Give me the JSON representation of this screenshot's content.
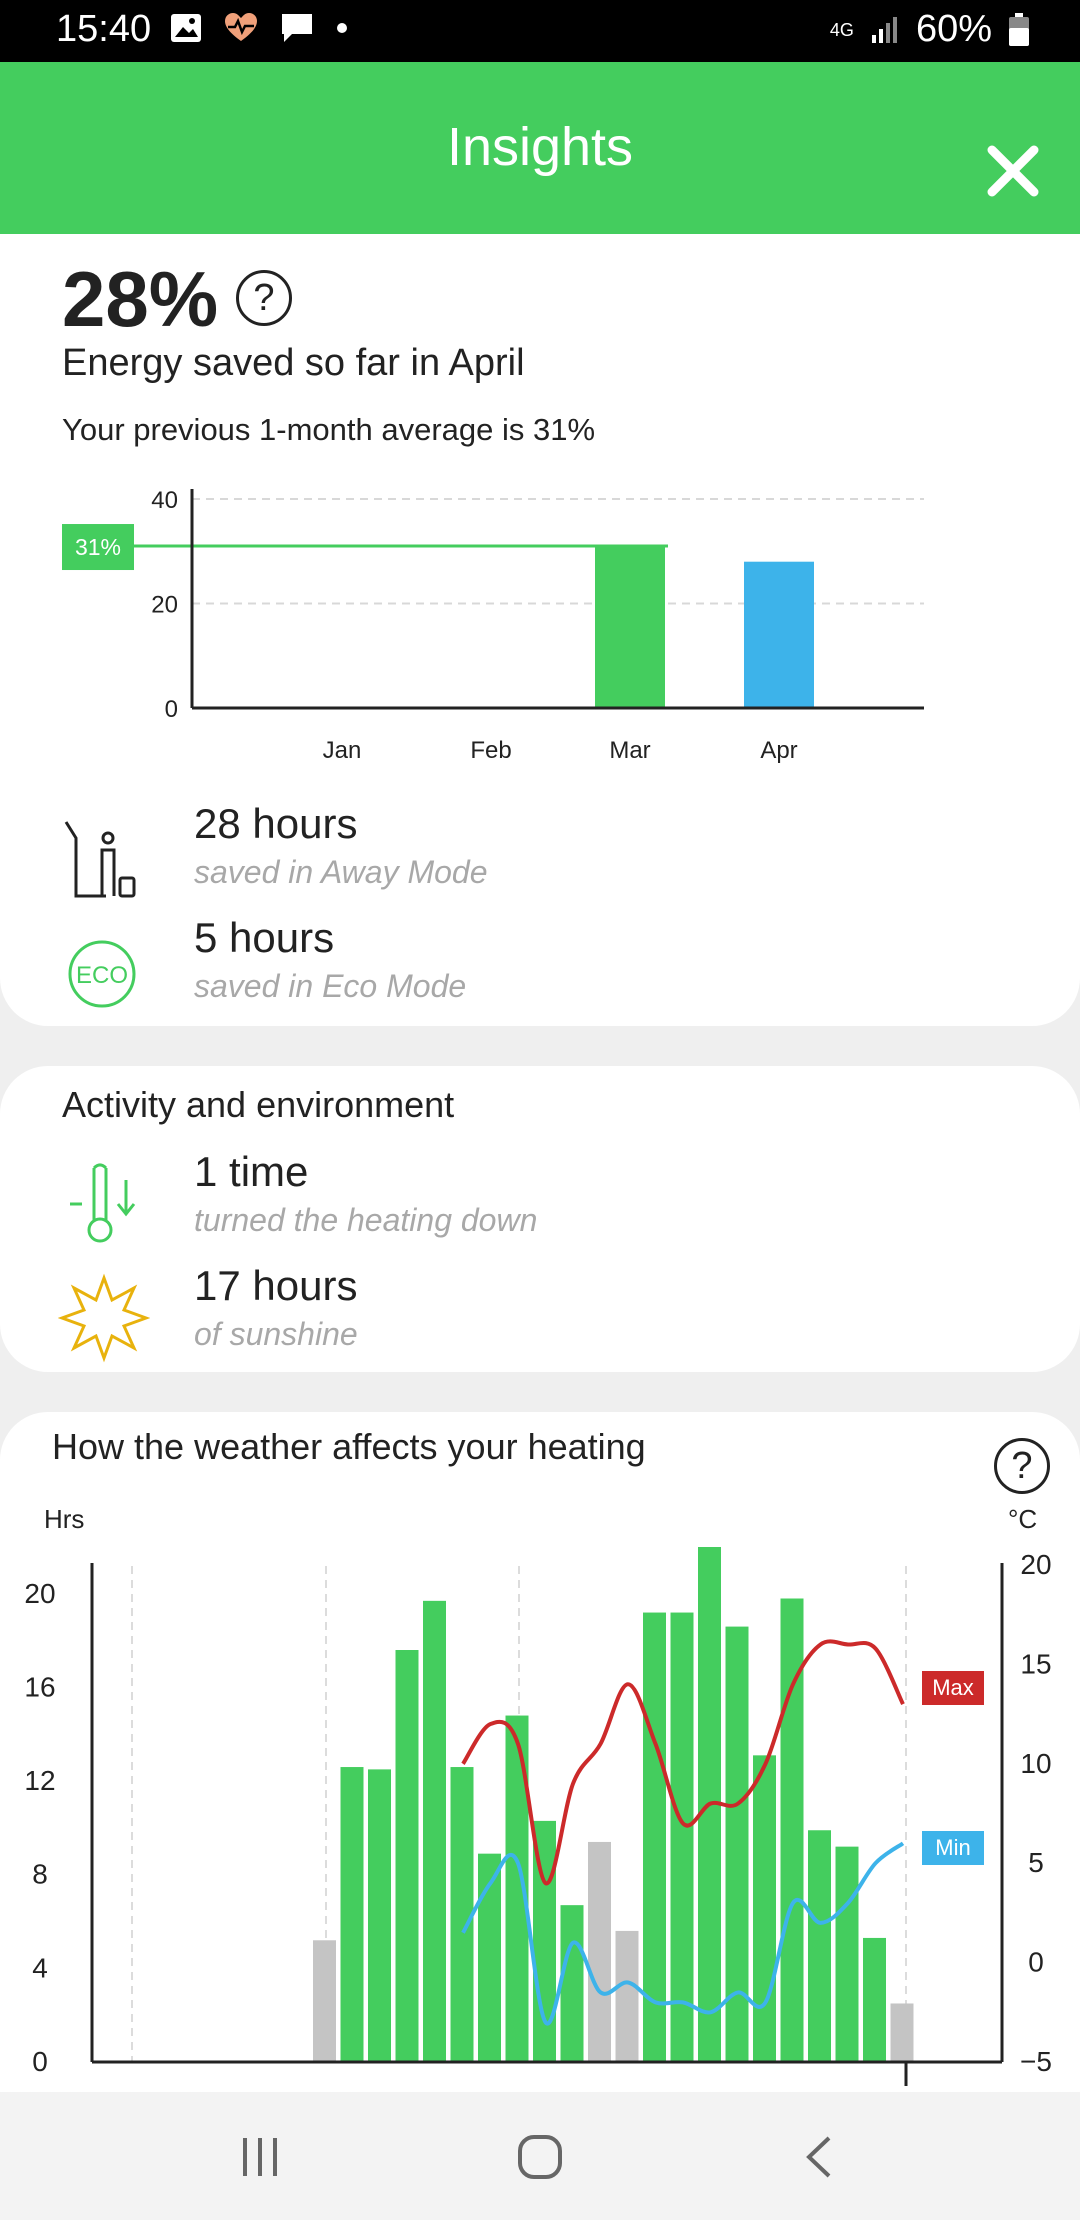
{
  "status_bar": {
    "time": "15:40",
    "network": "4G",
    "battery": "60%"
  },
  "app_bar": {
    "title": "Insights"
  },
  "energy": {
    "percent": "28%",
    "help": "?",
    "headline": "Energy saved so far in April",
    "subline": "Your previous 1-month average is 31%",
    "away": {
      "value": "28 hours",
      "label": "saved in Away Mode"
    },
    "eco": {
      "value": "5 hours",
      "label": "saved in Eco Mode",
      "icon_text": "ECO"
    }
  },
  "activity": {
    "title": "Activity and environment",
    "heating": {
      "value": "1 time",
      "label": "turned the heating down"
    },
    "sunshine": {
      "value": "17 hours",
      "label": "of sunshine"
    }
  },
  "weather": {
    "title": "How the weather affects your heating",
    "help": "?",
    "left_unit": "Hrs",
    "right_unit": "°C"
  },
  "colors": {
    "green": "#44cd5e",
    "blue": "#3db3ea",
    "red": "#cc2a2a",
    "gray": "#c4c4c4"
  },
  "chart_data": [
    {
      "type": "bar",
      "categories": [
        "Jan",
        "Feb",
        "Mar",
        "Apr"
      ],
      "values": [
        0,
        0,
        31,
        28
      ],
      "ylim": [
        0,
        40
      ],
      "yticks": [
        0,
        20,
        40
      ],
      "reference_line": {
        "value": 31,
        "label": "31%"
      },
      "grid": true
    },
    {
      "type": "bar",
      "left_axis": {
        "label": "Hrs",
        "ylim": [
          0,
          22
        ],
        "ticks": [
          0,
          4,
          8,
          12,
          16,
          20
        ]
      },
      "right_axis": {
        "label": "°C",
        "ylim": [
          -5,
          20
        ],
        "ticks": [
          -5,
          0,
          5,
          10,
          15,
          20
        ]
      },
      "x": [
        1,
        2,
        3,
        4,
        5,
        6,
        7,
        8,
        9,
        10,
        11,
        12,
        13,
        14,
        15,
        16,
        17,
        18,
        19,
        20,
        21,
        22,
        23,
        24,
        25,
        26,
        27,
        28,
        29,
        30
      ],
      "series": [
        {
          "values": [
            0,
            0,
            0,
            0,
            0,
            0,
            0,
            5.2,
            12.6,
            12.5,
            17.6,
            19.7,
            12.6,
            8.9,
            14.8,
            10.3,
            6.7,
            9.4,
            5.6,
            19.2,
            19.2,
            22.0,
            18.6,
            13.1,
            19.8,
            9.9,
            9.2,
            5.3,
            2.5,
            0
          ]
        }
      ],
      "bar_colors": [
        "",
        "",
        "",
        "",
        "",
        "",
        "",
        "gray",
        "green",
        "green",
        "green",
        "green",
        "green",
        "green",
        "green",
        "green",
        "green",
        "gray",
        "gray",
        "green",
        "green",
        "green",
        "green",
        "green",
        "green",
        "green",
        "green",
        "green",
        "gray",
        ""
      ],
      "lines": [
        {
          "name": "Max",
          "x": [
            13,
            14,
            15,
            16,
            17,
            18,
            19,
            20,
            21,
            22,
            23,
            24,
            25,
            26,
            27,
            28,
            29
          ],
          "values": [
            10,
            12,
            11,
            4,
            9,
            11,
            14,
            11,
            7,
            8,
            8,
            10,
            14,
            16,
            16,
            15.8,
            13
          ]
        },
        {
          "name": "Min",
          "x": [
            13,
            14,
            15,
            16,
            17,
            18,
            19,
            20,
            21,
            22,
            23,
            24,
            25,
            26,
            27,
            28,
            29
          ],
          "values": [
            1.5,
            4,
            5,
            -3,
            1,
            -1.5,
            -1,
            -2,
            -2,
            -2.5,
            -1.5,
            -2,
            3,
            2,
            3,
            5,
            6
          ]
        }
      ],
      "grid": "vertical dashed"
    }
  ]
}
